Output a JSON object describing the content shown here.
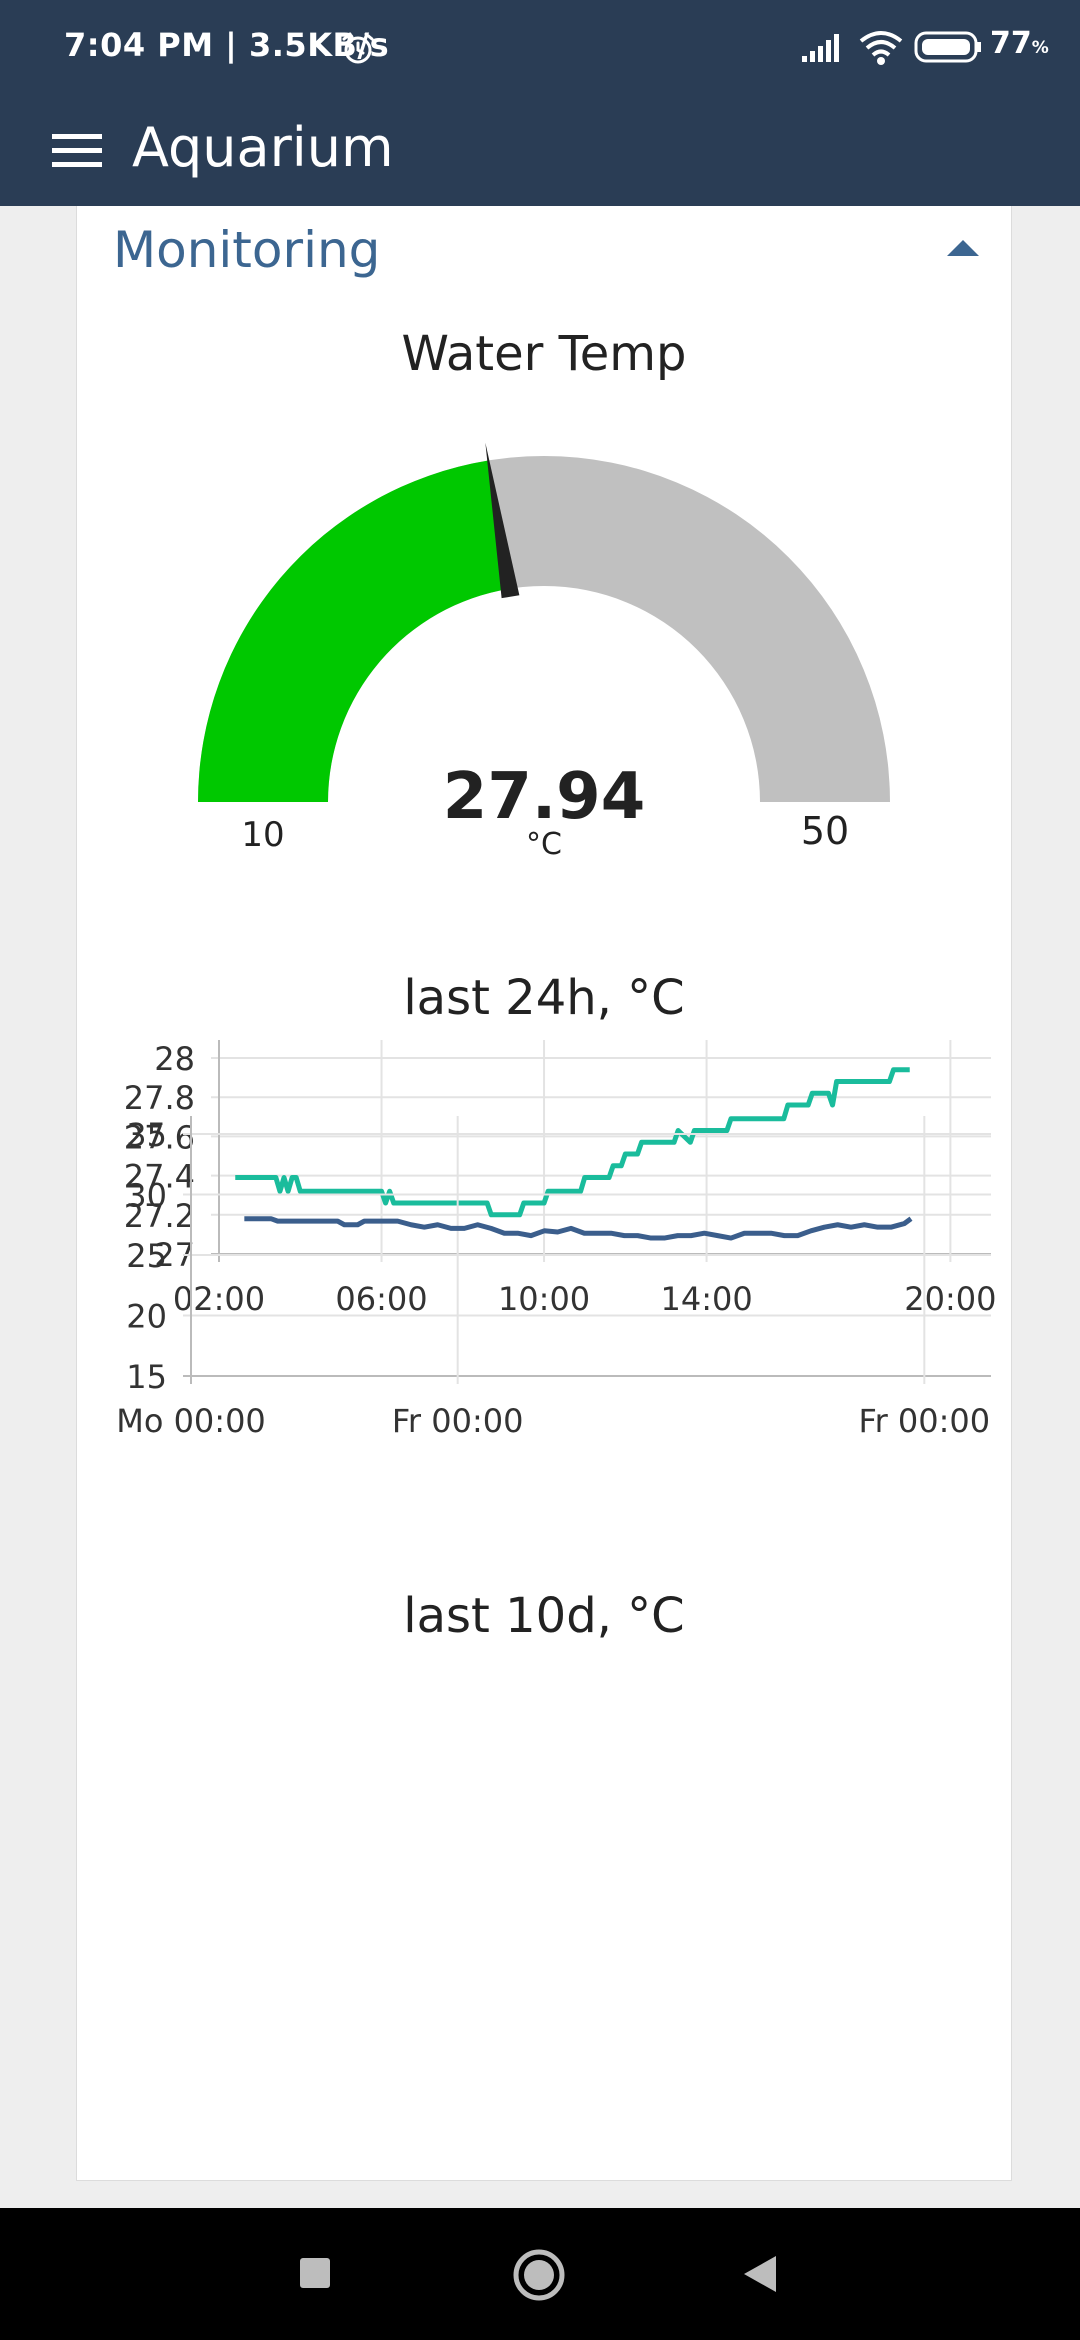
{
  "status_bar": {
    "time_speed": "7:04 PM | 3.5KB/s",
    "battery": "77",
    "battery_unit": "%"
  },
  "app_bar": {
    "title": "Aquarium"
  },
  "section": {
    "title": "Monitoring"
  },
  "gauge": {
    "title": "Water Temp",
    "value": 27.94,
    "value_text": "27.94",
    "unit": "°C",
    "min": 10,
    "max": 50,
    "min_label": "10",
    "max_label": "50",
    "fill_color": "#00c800",
    "track_color": "#c0c0c0"
  },
  "chart_data": [
    {
      "type": "line",
      "title": "last 24h, °C",
      "xlabel": "",
      "ylabel": "",
      "ylim": [
        27,
        28
      ],
      "y_ticks": [
        "27",
        "27.2",
        "27.4",
        "27.6",
        "27.8",
        "28"
      ],
      "x_tick_labels": [
        "02:00",
        "06:00",
        "10:00",
        "14:00",
        "20:00"
      ],
      "x_ticks_hours": [
        2,
        6,
        10,
        14,
        20
      ],
      "xlim_hours": [
        2,
        21
      ],
      "grid": true,
      "color": "#1abc9c",
      "series": [
        {
          "x": [
            2.4,
            3.4,
            3.5,
            3.6,
            3.7,
            3.8,
            3.9,
            4.0,
            4.1,
            4.2,
            6.0,
            6.1,
            6.2,
            6.3,
            8.6,
            8.7,
            9.4,
            9.5,
            10.0,
            10.1,
            10.9,
            11.0,
            11.6,
            11.7,
            11.9,
            12.0,
            12.3,
            12.4,
            12.7,
            12.8,
            13.2,
            13.3,
            13.6,
            13.7,
            13.8,
            13.9,
            14.5,
            14.6,
            15.0,
            15.1,
            15.9,
            16.0,
            16.5,
            16.6,
            17.0,
            17.1,
            17.2,
            17.3,
            18.5,
            18.6,
            19.0
          ],
          "y": [
            27.39,
            27.39,
            27.32,
            27.39,
            27.32,
            27.39,
            27.39,
            27.32,
            27.32,
            27.32,
            27.32,
            27.26,
            27.32,
            27.26,
            27.26,
            27.2,
            27.2,
            27.26,
            27.26,
            27.32,
            27.32,
            27.39,
            27.39,
            27.45,
            27.45,
            27.51,
            27.51,
            27.57,
            27.57,
            27.57,
            27.57,
            27.63,
            27.57,
            27.63,
            27.63,
            27.63,
            27.63,
            27.69,
            27.69,
            27.69,
            27.69,
            27.76,
            27.76,
            27.82,
            27.82,
            27.76,
            27.88,
            27.88,
            27.88,
            27.94,
            27.94
          ]
        }
      ]
    },
    {
      "type": "line",
      "title": "last 10d, °C",
      "xlabel": "",
      "ylabel": "",
      "ylim": [
        15,
        35
      ],
      "y_ticks": [
        "15",
        "20",
        "25",
        "30",
        "35"
      ],
      "x_tick_labels": [
        "Mo 00:00",
        "Fr 00:00",
        "Fr 00:00"
      ],
      "x_ticks_days": [
        0,
        4,
        11
      ],
      "xlim_days": [
        0,
        12
      ],
      "grid": true,
      "color": "#3b5e8c",
      "series": [
        {
          "x": [
            0.8,
            1.2,
            1.3,
            2.2,
            2.3,
            2.5,
            2.6,
            3.1,
            3.3,
            3.5,
            3.7,
            3.9,
            4.1,
            4.3,
            4.5,
            4.7,
            4.9,
            5.1,
            5.3,
            5.5,
            5.7,
            5.9,
            6.1,
            6.3,
            6.5,
            6.7,
            6.9,
            7.1,
            7.3,
            7.5,
            7.7,
            7.9,
            8.1,
            8.3,
            8.5,
            8.7,
            8.9,
            9.1,
            9.3,
            9.5,
            9.7,
            9.9,
            10.1,
            10.3,
            10.5,
            10.7,
            10.8
          ],
          "y": [
            28,
            28,
            27.8,
            27.8,
            27.5,
            27.5,
            27.8,
            27.8,
            27.5,
            27.3,
            27.5,
            27.2,
            27.2,
            27.5,
            27.2,
            26.8,
            26.8,
            26.6,
            27.0,
            26.9,
            27.2,
            26.8,
            26.8,
            26.8,
            26.6,
            26.6,
            26.4,
            26.4,
            26.6,
            26.6,
            26.8,
            26.6,
            26.4,
            26.8,
            26.8,
            26.8,
            26.6,
            26.6,
            27.0,
            27.3,
            27.5,
            27.3,
            27.5,
            27.3,
            27.3,
            27.6,
            28.0
          ]
        }
      ]
    }
  ]
}
